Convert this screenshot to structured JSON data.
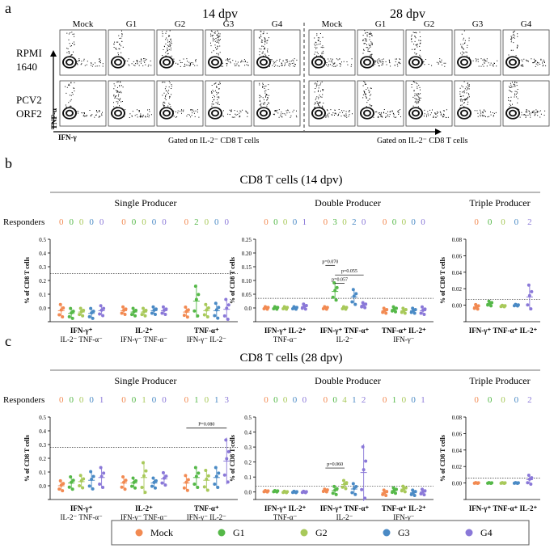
{
  "panel_a": {
    "letter": "a",
    "groups": [
      "Mock",
      "G1",
      "G2",
      "G3",
      "G4"
    ],
    "timepoints": [
      "14 dpv",
      "28 dpv"
    ],
    "rows": [
      "RPMI\n1640",
      "PCV2\nORF2"
    ],
    "y_axis": "TNF-α",
    "x_axis": "IFN-γ",
    "gating": "Gated on IL-2⁻ CD8 T cells"
  },
  "colors": {
    "Mock": "#f28a52",
    "G1": "#55b848",
    "G2": "#a8c95a",
    "G3": "#4a8ac5",
    "G4": "#8a78d8"
  },
  "legend": [
    "Mock",
    "G1",
    "G2",
    "G3",
    "G4"
  ],
  "chart_data": [
    {
      "type": "scatter",
      "panel": "b",
      "letter": "b",
      "title": "CD8 T cells (14 dpv)",
      "ylabel": "% of CD8 T cells",
      "responders_label": "Responders",
      "sub": [
        {
          "name": "Single Producer",
          "ylim": [
            -0.1,
            0.5
          ],
          "yticks": [
            -0.1,
            0.0,
            0.1,
            0.2,
            0.3,
            0.4,
            0.5
          ],
          "ytick_labels": [
            "",
            "0.0",
            "0.1",
            "0.2",
            "0.3",
            "0.4",
            "0.5"
          ],
          "threshold": 0.25,
          "cats": [
            [
              "IFN-γ⁺",
              "IL-2⁻ TNF-α⁻"
            ],
            [
              "IL-2⁺",
              "IFN-γ⁻ TNF-α⁻"
            ],
            [
              "TNF-α⁺",
              "IFN-γ⁻ IL-2⁻"
            ]
          ],
          "responders": [
            [
              0,
              0,
              0,
              0,
              0
            ],
            [
              0,
              0,
              0,
              0,
              0
            ],
            [
              0,
              2,
              0,
              0,
              0
            ]
          ],
          "means": [
            [
              -0.02,
              -0.04,
              -0.03,
              -0.04,
              -0.02
            ],
            [
              -0.02,
              -0.03,
              -0.03,
              -0.02,
              -0.02
            ],
            [
              -0.03,
              0.05,
              -0.02,
              -0.02,
              -0.01
            ]
          ],
          "sds": [
            [
              0.05,
              0.04,
              0.03,
              0.04,
              0.04
            ],
            [
              0.03,
              0.03,
              0.03,
              0.03,
              0.03
            ],
            [
              0.04,
              0.12,
              0.05,
              0.06,
              0.08
            ]
          ],
          "pvals": []
        },
        {
          "name": "Double Producer",
          "ylim": [
            -0.05,
            0.25
          ],
          "yticks": [
            -0.05,
            0.0,
            0.05,
            0.1,
            0.15,
            0.2,
            0.25
          ],
          "ytick_labels": [
            "",
            "0.0",
            "0.05",
            "0.10",
            "0.15",
            "0.20",
            "0.25"
          ],
          "threshold": 0.035,
          "cats": [
            [
              "IFN-γ⁺ IL-2⁺",
              "TNF-α⁻"
            ],
            [
              "IFN-γ⁺ TNF-α⁺",
              "IL-2⁻"
            ],
            [
              "TNF-α⁺ IL-2⁺",
              "IFN-γ⁻"
            ]
          ],
          "responders": [
            [
              0,
              0,
              0,
              0,
              1
            ],
            [
              0,
              3,
              0,
              2,
              0
            ],
            [
              0,
              0,
              0,
              0,
              0
            ]
          ],
          "means": [
            [
              0.0,
              0.0,
              0.0,
              0.0,
              0.005
            ],
            [
              0.0,
              0.06,
              0.0,
              0.04,
              0.01
            ],
            [
              -0.01,
              -0.005,
              -0.01,
              -0.01,
              -0.01
            ]
          ],
          "sds": [
            [
              0.005,
              0.005,
              0.005,
              0.005,
              0.01
            ],
            [
              0.005,
              0.035,
              0.005,
              0.03,
              0.01
            ],
            [
              0.01,
              0.01,
              0.01,
              0.01,
              0.015
            ]
          ],
          "pvals": [
            {
              "text": "p=0.070",
              "from": 0,
              "to": 1,
              "y": 0.155
            },
            {
              "text": "p=0.057",
              "from": 1,
              "to": 2,
              "y": 0.09
            },
            {
              "text": "p=0.055",
              "from": 1,
              "to": 4,
              "y": 0.12
            }
          ]
        },
        {
          "name": "Triple Producer",
          "ylim": [
            -0.02,
            0.08
          ],
          "yticks": [
            -0.02,
            0.0,
            0.02,
            0.04,
            0.06,
            0.08
          ],
          "ytick_labels": [
            "",
            "0.00",
            "0.02",
            "0.04",
            "0.06",
            "0.08"
          ],
          "threshold": 0.007,
          "cats": [
            [
              "IFN-γ⁺ TNF-α⁺ IL-2⁺",
              ""
            ]
          ],
          "responders": [
            [
              0,
              0,
              0,
              0,
              2
            ]
          ],
          "means": [
            [
              -0.002,
              0.002,
              -0.001,
              0.0,
              0.01
            ]
          ],
          "sds": [
            [
              0.003,
              0.003,
              0.001,
              0.001,
              0.016
            ]
          ],
          "pvals": []
        }
      ]
    },
    {
      "type": "scatter",
      "panel": "c",
      "letter": "c",
      "title": "CD8 T cells (28 dpv)",
      "ylabel": "% of CD8 T cells",
      "responders_label": "Responders",
      "sub": [
        {
          "name": "Single Producer",
          "ylim": [
            -0.1,
            0.5
          ],
          "yticks": [
            -0.1,
            0.0,
            0.1,
            0.2,
            0.3,
            0.4,
            0.5
          ],
          "ytick_labels": [
            "",
            "0.0",
            "0.1",
            "0.2",
            "0.3",
            "0.4",
            "0.5"
          ],
          "threshold": 0.28,
          "cats": [
            [
              "IFN-γ⁺",
              "IL-2⁻ TNF-α⁻"
            ],
            [
              "IL-2⁺",
              "IFN-γ⁻ TNF-α⁻"
            ],
            [
              "TNF-α⁺",
              "IFN-γ⁻ IL-2⁻"
            ]
          ],
          "responders": [
            [
              0,
              0,
              0,
              0,
              1
            ],
            [
              0,
              0,
              1,
              0,
              0
            ],
            [
              0,
              1,
              0,
              1,
              3
            ]
          ],
          "means": [
            [
              0.0,
              0.02,
              0.03,
              0.04,
              0.06
            ],
            [
              0.02,
              0.02,
              0.06,
              0.02,
              0.05
            ],
            [
              0.02,
              0.06,
              0.04,
              0.06,
              0.18
            ]
          ],
          "sds": [
            [
              0.04,
              0.05,
              0.05,
              0.07,
              0.08
            ],
            [
              0.05,
              0.04,
              0.12,
              0.04,
              0.05
            ],
            [
              0.06,
              0.08,
              0.08,
              0.08,
              0.17
            ]
          ],
          "pvals": [
            {
              "text": "P=0.080",
              "from": 0,
              "to": 4,
              "y": 0.42
            }
          ]
        },
        {
          "name": "Double Producer",
          "ylim": [
            -0.05,
            0.5
          ],
          "yticks": [
            -0.05,
            0.0,
            0.1,
            0.2,
            0.3,
            0.4,
            0.5
          ],
          "ytick_labels": [
            "",
            "0.0",
            "0.1",
            "0.2",
            "0.3",
            "0.4",
            "0.5"
          ],
          "threshold": 0.04,
          "cats": [
            [
              "IFN-γ⁺ IL-2⁺",
              "TNF-α⁻"
            ],
            [
              "IFN-γ⁺ TNF-α⁺",
              "IL-2⁻"
            ],
            [
              "TNF-α⁺ IL-2⁺",
              "IFN-γ⁻"
            ]
          ],
          "responders": [
            [
              0,
              0,
              0,
              0,
              0
            ],
            [
              0,
              0,
              4,
              1,
              2
            ],
            [
              0,
              1,
              0,
              0,
              1
            ]
          ],
          "means": [
            [
              0.005,
              0.005,
              0.0,
              0.0,
              0.0
            ],
            [
              0.01,
              0.01,
              0.05,
              0.02,
              0.13
            ],
            [
              -0.005,
              0.01,
              0.02,
              -0.005,
              0.0
            ]
          ],
          "sds": [
            [
              0.005,
              0.005,
              0.005,
              0.005,
              0.005
            ],
            [
              0.01,
              0.03,
              0.03,
              0.04,
              0.19
            ],
            [
              0.02,
              0.02,
              0.02,
              0.02,
              0.02
            ]
          ],
          "pvals": [
            {
              "text": "p=0.060",
              "from": 0,
              "to": 2,
              "y": 0.16
            }
          ]
        },
        {
          "name": "Triple Producer",
          "ylim": [
            -0.02,
            0.08
          ],
          "yticks": [
            -0.02,
            0.0,
            0.02,
            0.04,
            0.06,
            0.08
          ],
          "ytick_labels": [
            "",
            "0.00",
            "0.02",
            "0.04",
            "0.06",
            "0.08"
          ],
          "threshold": 0.006,
          "cats": [
            [
              "IFN-γ⁺ TNF-α⁺ IL-2⁺",
              ""
            ]
          ],
          "responders": [
            [
              0,
              0,
              0,
              0,
              2
            ]
          ],
          "means": [
            [
              0.0,
              0.0,
              0.0,
              0.0,
              0.004
            ]
          ],
          "sds": [
            [
              0.0005,
              0.0005,
              0.0005,
              0.0005,
              0.006
            ]
          ],
          "pvals": []
        }
      ]
    }
  ]
}
